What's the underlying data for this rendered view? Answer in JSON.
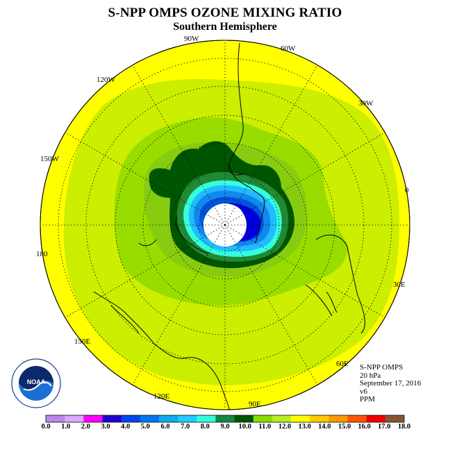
{
  "header": {
    "title": "S-NPP OMPS OZONE MIXING RATIO",
    "subtitle": "Southern Hemisphere"
  },
  "map": {
    "projection": "south polar stereographic",
    "longitude_labels": {
      "lon_90w": "90W",
      "lon_60w": "60W",
      "lon_30w": "30W",
      "lon_0": "0",
      "lon_30e": "30E",
      "lon_60e": "60E",
      "lon_90e": "90E",
      "lon_120e": "120E",
      "lon_150e": "150E",
      "lon_180": "180",
      "lon_150w": "150W",
      "lon_120w": "120W"
    },
    "colors": {
      "outer_ring": "#ffff00",
      "yellow_green": "#ccee00",
      "light_green": "#99dd00",
      "green": "#77cc11",
      "mid_green": "#228833",
      "dark_green": "#005500",
      "cyan": "#33ffdd",
      "blue_light": "#22bbff",
      "blue": "#1188ee",
      "blue_dark": "#0055dd",
      "navy": "#0000dd"
    }
  },
  "info": {
    "instrument": "S-NPP OMPS",
    "level": "20 hPa",
    "date": "September 17, 2016",
    "version": "v6",
    "unit": "PPM"
  },
  "logo": {
    "text": "NOAA",
    "ring_text": "NATIONAL OCEANIC AND ATMOSPHERIC ADMINISTRATION U.S. DEPARTMENT OF COMMERCE"
  },
  "colorbar": {
    "ticks": [
      "0.0",
      "1.0",
      "2.0",
      "3.0",
      "4.0",
      "5.0",
      "6.0",
      "7.0",
      "8.0",
      "9.0",
      "10.0",
      "11.0",
      "12.0",
      "13.0",
      "14.0",
      "15.0",
      "16.0",
      "17.0",
      "18.0"
    ],
    "colors": [
      "#bb88ee",
      "#ddaaff",
      "#ff00ff",
      "#2200cc",
      "#0044ee",
      "#0077ee",
      "#11aaee",
      "#22ccff",
      "#33ffdd",
      "#118844",
      "#005500",
      "#88dd00",
      "#bbee22",
      "#ffff00",
      "#ffcc00",
      "#ff9900",
      "#ff5500",
      "#ee0000",
      "#885533"
    ]
  }
}
